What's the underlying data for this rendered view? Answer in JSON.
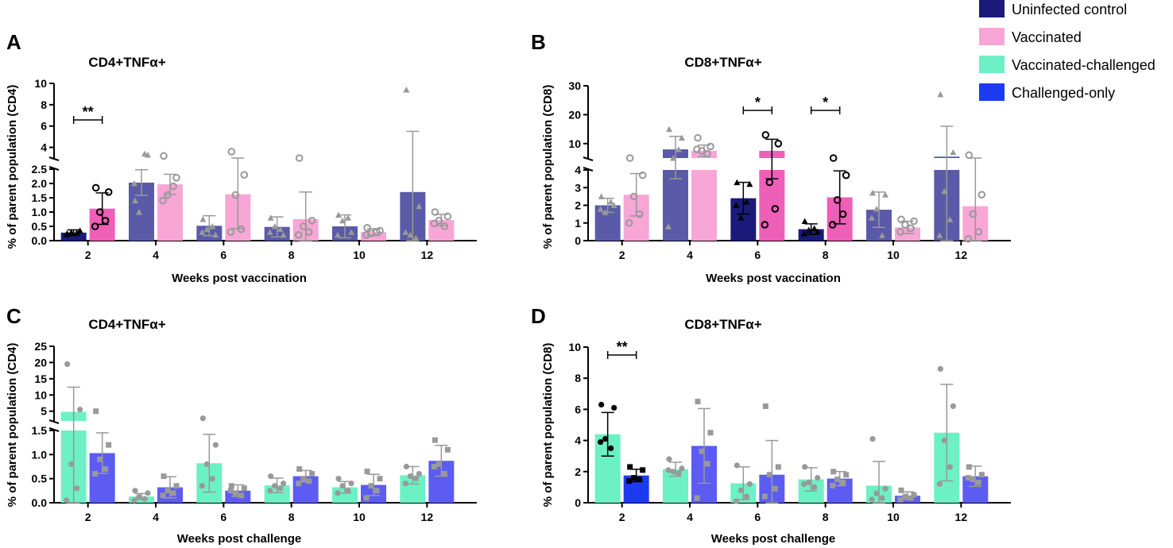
{
  "colors": {
    "uninfected_control": "#5b5aa8",
    "uninfected_control_highlight": "#1a1a7a",
    "vaccinated": "#f7a6d6",
    "vaccinated_highlight": "#ee5fb7",
    "vaccinated_challenged": "#6cf0c4",
    "challenged_only": "#5c5cf2",
    "challenged_only_highlight": "#1c3bf0",
    "point_grey": "#999999",
    "point_black": "#000000"
  },
  "legend": {
    "items": [
      {
        "label": "Uninfected control",
        "color": "#1a1a7a"
      },
      {
        "label": "Vaccinated",
        "color": "#f7a6d6"
      },
      {
        "label": "Vaccinated-challenged",
        "color": "#6cf0c4"
      },
      {
        "label": "Challenged-only",
        "color": "#1c3bf0"
      }
    ]
  },
  "chart_data": [
    {
      "panel": "A",
      "type": "bar",
      "title": "CD4+TNFα+",
      "xlabel": "Weeks post vaccination",
      "ylabel": "% of parent population (CD4)",
      "categories": [
        "2",
        "4",
        "6",
        "8",
        "10",
        "12"
      ],
      "axis_break": true,
      "lower_range": [
        0,
        2.5
      ],
      "lower_ticks": [
        "0.0",
        "0.5",
        "1.0",
        "1.5",
        "2.0",
        "2.5"
      ],
      "upper_range": [
        3,
        10
      ],
      "upper_ticks": [
        "4",
        "6",
        "8",
        "10"
      ],
      "series": [
        {
          "name": "Uninfected control",
          "marker": "triangle",
          "values": [
            0.28,
            2.03,
            0.52,
            0.48,
            0.5,
            1.7
          ],
          "errors": [
            0.1,
            0.45,
            0.35,
            0.35,
            0.4,
            3.8
          ],
          "highlight": [
            true,
            false,
            false,
            false,
            false,
            false
          ],
          "points": [
            [
              0.25,
              0.35,
              0.3,
              0.28,
              0.22
            ],
            [
              1.4,
              3.3,
              1.0,
              3.4,
              2.0
            ],
            [
              0.75,
              0.2,
              0.4,
              0.5,
              0.3
            ],
            [
              0.8,
              0.2,
              0.5,
              0.4,
              0.3
            ],
            [
              0.9,
              0.3,
              0.7,
              0.8,
              0.2
            ],
            [
              9.4,
              1.2,
              0.2,
              0.1,
              0.3
            ]
          ]
        },
        {
          "name": "Vaccinated",
          "marker": "circle",
          "values": [
            1.12,
            1.97,
            1.62,
            0.75,
            0.3,
            0.72
          ],
          "errors": [
            0.55,
            0.35,
            1.2,
            0.95,
            0.12,
            0.2
          ],
          "highlight": [
            true,
            false,
            false,
            false,
            false,
            false
          ],
          "points": [
            [
              1.85,
              1.7,
              1.0,
              0.7,
              0.5
            ],
            [
              3.2,
              2.2,
              1.6,
              1.9,
              1.4
            ],
            [
              3.6,
              2.3,
              1.6,
              0.4,
              0.3
            ],
            [
              2.7,
              0.7,
              0.5,
              0.3,
              0.2
            ],
            [
              0.45,
              0.35,
              0.25,
              0.3,
              0.2
            ],
            [
              1.0,
              0.85,
              0.7,
              0.5,
              0.6
            ]
          ]
        }
      ],
      "significance": [
        {
          "label": "**",
          "category": "2"
        }
      ]
    },
    {
      "panel": "B",
      "type": "bar",
      "title": "CD8+TNFα+",
      "xlabel": "Weeks post vaccination",
      "ylabel": "% of parent population (CD8)",
      "categories": [
        "2",
        "4",
        "6",
        "8",
        "10",
        "12"
      ],
      "axis_break": true,
      "lower_range": [
        0,
        4
      ],
      "lower_ticks": [
        "0",
        "1",
        "2",
        "3",
        "4"
      ],
      "upper_range": [
        5,
        30
      ],
      "upper_ticks": [
        "10",
        "20",
        "30"
      ],
      "series": [
        {
          "name": "Uninfected control",
          "marker": "triangle",
          "values": [
            2.0,
            8.0,
            2.4,
            0.65,
            1.75,
            5.5
          ],
          "errors": [
            0.4,
            4.5,
            0.9,
            0.3,
            1.0,
            10.5
          ],
          "highlight": [
            false,
            false,
            true,
            true,
            false,
            false
          ],
          "points": [
            [
              2.5,
              2.0,
              1.6,
              2.2,
              1.8
            ],
            [
              15.0,
              12.0,
              4.5,
              8.0,
              0.8
            ],
            [
              3.3,
              3.2,
              1.3,
              2.2,
              2.0
            ],
            [
              1.1,
              0.5,
              0.6,
              0.7,
              0.4
            ],
            [
              2.7,
              2.6,
              1.8,
              0.3,
              1.3
            ],
            [
              27.0,
              7.0,
              2.8,
              1.2,
              0.3
            ]
          ]
        },
        {
          "name": "Vaccinated",
          "marker": "circle",
          "values": [
            2.6,
            7.5,
            7.5,
            2.45,
            0.75,
            1.95
          ],
          "errors": [
            1.2,
            2.0,
            4.0,
            1.5,
            0.35,
            2.3
          ],
          "highlight": [
            false,
            false,
            true,
            true,
            false,
            false
          ],
          "points": [
            [
              5.0,
              3.7,
              2.5,
              1.5,
              1.0
            ],
            [
              12.0,
              9.0,
              7.5,
              6.5,
              8.0
            ],
            [
              13.0,
              10.0,
              3.3,
              1.8,
              0.9
            ],
            [
              5.0,
              3.7,
              2.3,
              1.5,
              0.9
            ],
            [
              1.2,
              1.1,
              0.9,
              0.7,
              0.5
            ],
            [
              6.0,
              2.6,
              1.5,
              0.5,
              0.1
            ]
          ]
        }
      ],
      "significance": [
        {
          "label": "*",
          "category": "6"
        },
        {
          "label": "*",
          "category": "8"
        }
      ]
    },
    {
      "panel": "C",
      "type": "bar",
      "title": "CD4+TNFα+",
      "xlabel": "Weeks post challenge",
      "ylabel": "% of parent population (CD4)",
      "categories": [
        "2",
        "4",
        "6",
        "8",
        "10",
        "12"
      ],
      "axis_break": true,
      "lower_range": [
        0,
        1.5
      ],
      "lower_ticks": [
        "0.0",
        "0.5",
        "1.0",
        "1.5"
      ],
      "upper_range": [
        2,
        25
      ],
      "upper_ticks": [
        "5",
        "10",
        "15",
        "20",
        "25"
      ],
      "series": [
        {
          "name": "Vaccinated-challenged",
          "marker": "dot",
          "values": [
            4.8,
            0.13,
            0.82,
            0.36,
            0.32,
            0.57
          ],
          "errors": [
            7.6,
            0.06,
            0.6,
            0.15,
            0.12,
            0.18
          ],
          "highlight": [
            false,
            false,
            false,
            false,
            false,
            false
          ],
          "points": [
            [
              19.5,
              5.5,
              0.8,
              0.3,
              0.05
            ],
            [
              0.25,
              0.2,
              0.12,
              0.08,
              0.05
            ],
            [
              2.8,
              1.2,
              0.8,
              0.5,
              0.35
            ],
            [
              0.55,
              0.4,
              0.35,
              0.3,
              0.25
            ],
            [
              0.5,
              0.4,
              0.35,
              0.25,
              0.2
            ],
            [
              0.75,
              0.6,
              0.55,
              0.5,
              0.4
            ]
          ]
        },
        {
          "name": "Challenged-only",
          "marker": "square",
          "values": [
            1.03,
            0.32,
            0.25,
            0.55,
            0.37,
            0.87
          ],
          "errors": [
            0.42,
            0.22,
            0.12,
            0.12,
            0.22,
            0.32
          ],
          "highlight": [
            false,
            false,
            false,
            false,
            false,
            false
          ],
          "points": [
            [
              5.0,
              1.2,
              0.9,
              0.7,
              0.6
            ],
            [
              0.55,
              0.35,
              0.25,
              0.2,
              0.15
            ],
            [
              0.35,
              0.3,
              0.2,
              0.15,
              0.25
            ],
            [
              0.7,
              0.6,
              0.5,
              0.45,
              0.4
            ],
            [
              0.65,
              0.5,
              0.35,
              0.25,
              0.1
            ],
            [
              1.3,
              1.1,
              0.8,
              0.6,
              0.75
            ]
          ]
        }
      ],
      "significance": []
    },
    {
      "panel": "D",
      "type": "bar",
      "title": "CD8+TNFα+",
      "xlabel": "Weeks post challenge",
      "ylabel": "% of parent population (CD8)",
      "categories": [
        "2",
        "4",
        "6",
        "8",
        "10",
        "12"
      ],
      "axis_break": false,
      "range": [
        0,
        10
      ],
      "ticks": [
        "0",
        "2",
        "4",
        "6",
        "8",
        "10"
      ],
      "series": [
        {
          "name": "Vaccinated-challenged",
          "marker": "dot",
          "values": [
            4.4,
            2.15,
            1.25,
            1.5,
            1.1,
            4.5
          ],
          "errors": [
            1.4,
            0.45,
            1.05,
            0.75,
            1.55,
            3.1
          ],
          "highlight": [
            true,
            false,
            false,
            false,
            false,
            false
          ],
          "points": [
            [
              6.3,
              6.1,
              4.1,
              3.5,
              3.9
            ],
            [
              2.8,
              2.2,
              2.0,
              1.9,
              2.1
            ],
            [
              2.4,
              1.2,
              0.8,
              0.4,
              0.1
            ],
            [
              2.3,
              1.6,
              1.3,
              1.0,
              1.2
            ],
            [
              4.1,
              0.9,
              0.6,
              0.3,
              0.2
            ],
            [
              8.6,
              6.2,
              4.0,
              2.3,
              1.2
            ]
          ]
        },
        {
          "name": "Challenged-only",
          "marker": "square",
          "values": [
            1.75,
            3.65,
            1.8,
            1.55,
            0.45,
            1.7
          ],
          "errors": [
            0.4,
            2.4,
            2.2,
            0.45,
            0.25,
            0.65
          ],
          "highlight": [
            true,
            false,
            false,
            false,
            false,
            false
          ],
          "points": [
            [
              2.3,
              2.1,
              1.6,
              1.5,
              1.4
            ],
            [
              6.5,
              4.5,
              3.3,
              2.5,
              0.3
            ],
            [
              6.2,
              2.3,
              1.8,
              0.9,
              0.4
            ],
            [
              2.0,
              1.8,
              1.5,
              1.3,
              1.1
            ],
            [
              0.8,
              0.5,
              0.4,
              0.3,
              0.2
            ],
            [
              2.3,
              1.8,
              1.5,
              1.3,
              1.6
            ]
          ]
        }
      ],
      "significance": [
        {
          "label": "**",
          "category": "2"
        }
      ]
    }
  ]
}
